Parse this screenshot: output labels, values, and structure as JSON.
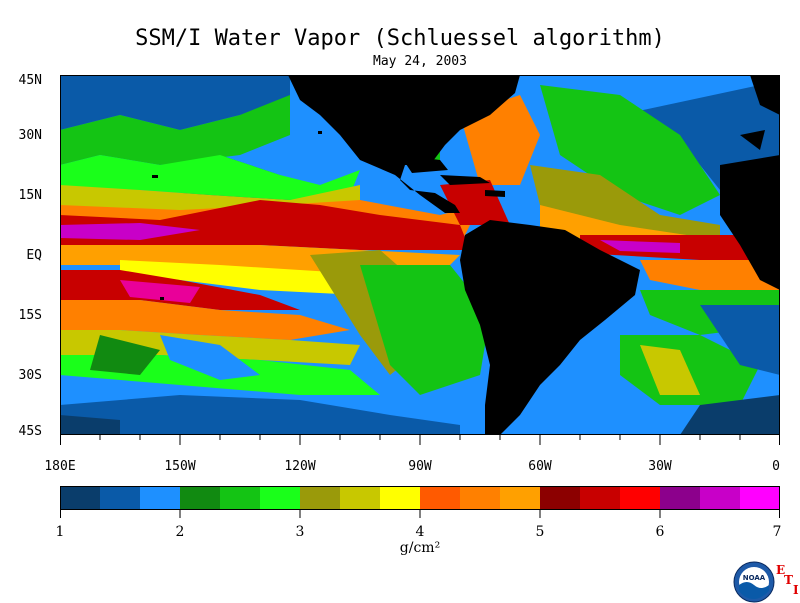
{
  "title": "SSM/I Water Vapor (Schluessel algorithm)",
  "date": "May 24, 2003",
  "lat_labels": [
    "45N",
    "30N",
    "15N",
    "EQ",
    "15S",
    "30S",
    "45S"
  ],
  "lon_labels": [
    "180E",
    "150W",
    "120W",
    "90W",
    "60W",
    "30W",
    "0"
  ],
  "colorbar": {
    "ticks": [
      "1",
      "2",
      "3",
      "4",
      "5",
      "6",
      "7"
    ],
    "units": "g/cm²",
    "range": [
      1,
      7
    ],
    "colors": [
      "#0a3d6b",
      "#0a5aa8",
      "#1e90ff",
      "#118a11",
      "#14c414",
      "#1aff1a",
      "#9a9a0a",
      "#c8c800",
      "#ffff00",
      "#ff5a00",
      "#ff8000",
      "#ffa000",
      "#8c0000",
      "#c80000",
      "#ff0000",
      "#8c008c",
      "#c800c8",
      "#ff00ff"
    ]
  },
  "map_colors": {
    "land": "#000000",
    "ocean_base": "#1e90ff"
  },
  "logo": {
    "text": "NOAA",
    "letters": [
      "E",
      "T",
      "I"
    ]
  }
}
